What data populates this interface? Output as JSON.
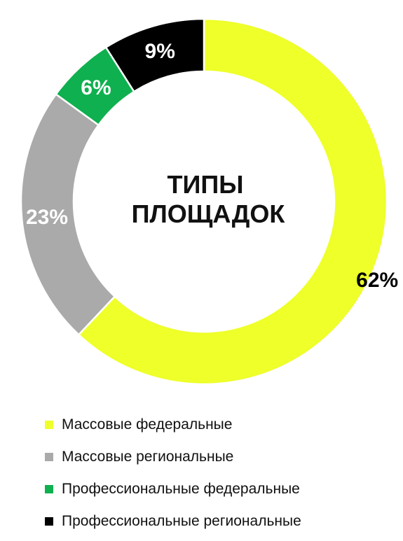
{
  "chart_data": {
    "type": "donut",
    "title": "ТИПЫ ПЛОЩАДОК",
    "title_lines": [
      "ТИПЫ",
      "ПЛОЩАДОК"
    ],
    "unit": "%",
    "legend_position": "bottom",
    "slices": [
      {
        "label": "Массовые федеральные",
        "value": 62,
        "value_label": "62%",
        "color": "#eeff2a",
        "text_color": "#000000"
      },
      {
        "label": "Массовые региональные",
        "value": 23,
        "value_label": "23%",
        "color": "#aaaaaa",
        "text_color": "#ffffff"
      },
      {
        "label": "Профессиональные федеральные",
        "value": 6,
        "value_label": "6%",
        "color": "#0fb04f",
        "text_color": "#ffffff"
      },
      {
        "label": "Профессиональные региональные",
        "value": 9,
        "value_label": "9%",
        "color": "#000000",
        "text_color": "#ffffff"
      }
    ]
  }
}
